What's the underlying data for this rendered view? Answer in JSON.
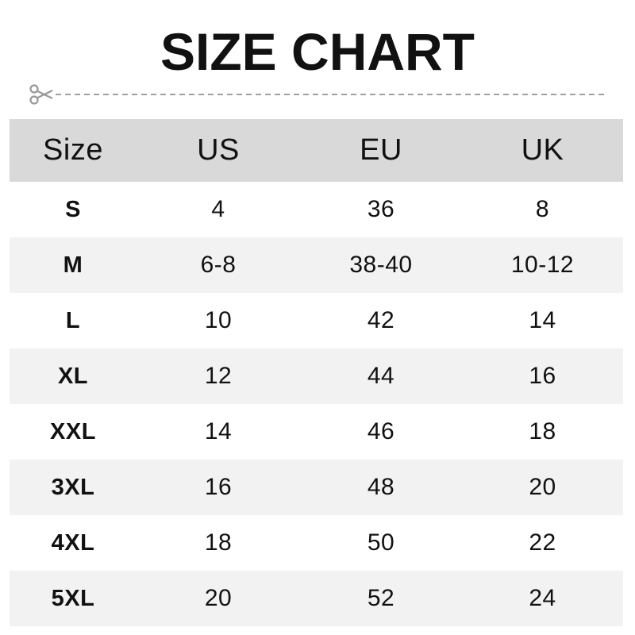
{
  "title": "SIZE CHART",
  "icons": {
    "cut": "scissors-icon"
  },
  "colors": {
    "header_bg": "#d9d9d9",
    "alt_row_bg": "#f2f2f2",
    "text": "#111111",
    "cutline": "#a0a0a0"
  },
  "table": {
    "headers": [
      "Size",
      "US",
      "EU",
      "UK"
    ],
    "rows": [
      [
        "S",
        "4",
        "36",
        "8"
      ],
      [
        "M",
        "6-8",
        "38-40",
        "10-12"
      ],
      [
        "L",
        "10",
        "42",
        "14"
      ],
      [
        "XL",
        "12",
        "44",
        "16"
      ],
      [
        "XXL",
        "14",
        "46",
        "18"
      ],
      [
        "3XL",
        "16",
        "48",
        "20"
      ],
      [
        "4XL",
        "18",
        "50",
        "22"
      ],
      [
        "5XL",
        "20",
        "52",
        "24"
      ]
    ]
  }
}
